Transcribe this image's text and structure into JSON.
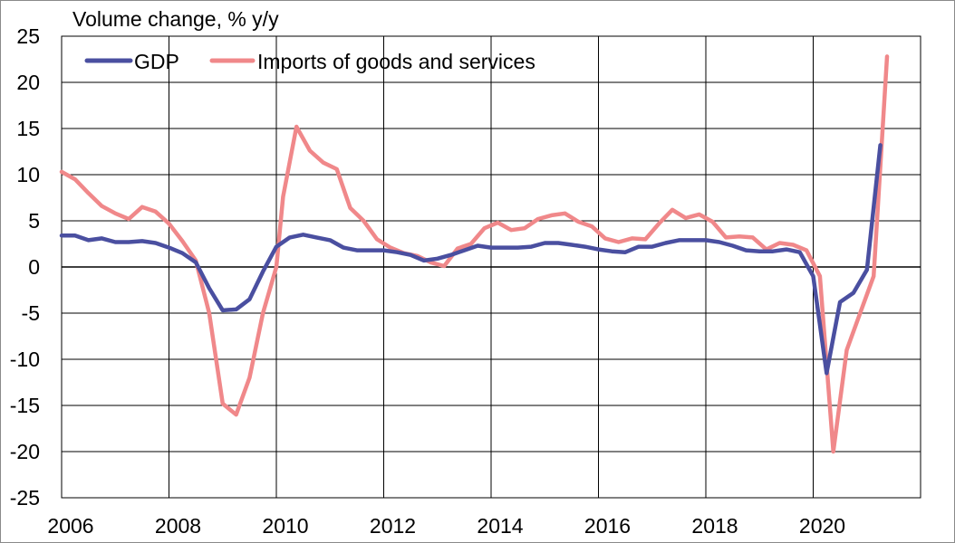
{
  "chart_data": {
    "type": "line",
    "title": "Volume change, % y/y",
    "xlabel": "",
    "ylabel": "",
    "xlim": [
      2006,
      2022
    ],
    "ylim": [
      -25,
      25
    ],
    "x_ticks": [
      2006,
      2008,
      2010,
      2012,
      2014,
      2016,
      2018,
      2020
    ],
    "x_tick_labels": [
      "2006",
      "2008",
      "2010",
      "2012",
      "2014",
      "2016",
      "2018",
      "2020"
    ],
    "y_ticks": [
      25,
      20,
      15,
      10,
      5,
      0,
      -5,
      -10,
      -15,
      -20,
      -25
    ],
    "y_tick_labels": [
      "25",
      "20",
      "15",
      "10",
      "5",
      "0",
      "-5",
      "-10",
      "-15",
      "-20",
      "-25"
    ],
    "grid": true,
    "legend_position": "top-left",
    "series": [
      {
        "name": "GDP",
        "color": "#4a4fa0",
        "x": [
          2006.0,
          2006.25,
          2006.5,
          2006.75,
          2007.0,
          2007.25,
          2007.5,
          2007.75,
          2008.0,
          2008.25,
          2008.5,
          2008.75,
          2009.0,
          2009.25,
          2009.5,
          2009.75,
          2010.0,
          2010.25,
          2010.5,
          2010.75,
          2011.0,
          2011.25,
          2011.5,
          2011.75,
          2012.0,
          2012.25,
          2012.5,
          2012.75,
          2013.0,
          2013.25,
          2013.5,
          2013.75,
          2014.0,
          2014.25,
          2014.5,
          2014.75,
          2015.0,
          2015.25,
          2015.5,
          2015.75,
          2016.0,
          2016.25,
          2016.5,
          2016.75,
          2017.0,
          2017.25,
          2017.5,
          2017.75,
          2018.0,
          2018.25,
          2018.5,
          2018.75,
          2019.0,
          2019.25,
          2019.5,
          2019.75,
          2020.0,
          2020.25,
          2020.5,
          2020.75,
          2021.0,
          2021.25
        ],
        "values": [
          3.4,
          3.4,
          2.9,
          3.1,
          2.7,
          2.7,
          2.8,
          2.6,
          2.1,
          1.5,
          0.5,
          -2.3,
          -4.7,
          -4.6,
          -3.5,
          -0.5,
          2.2,
          3.2,
          3.5,
          3.2,
          2.9,
          2.1,
          1.8,
          1.8,
          1.8,
          1.6,
          1.3,
          0.7,
          0.9,
          1.3,
          1.8,
          2.3,
          2.1,
          2.1,
          2.1,
          2.2,
          2.6,
          2.6,
          2.4,
          2.2,
          1.9,
          1.7,
          1.6,
          2.2,
          2.2,
          2.6,
          2.9,
          2.9,
          2.9,
          2.7,
          2.3,
          1.8,
          1.7,
          1.7,
          1.9,
          1.6,
          -1.0,
          -11.5,
          -3.8,
          -2.8,
          -0.3,
          13.2
        ]
      },
      {
        "name": "Imports of goods and services",
        "color": "#f0888a",
        "x": [
          2006.0,
          2006.25,
          2006.5,
          2006.75,
          2007.0,
          2007.25,
          2007.5,
          2007.75,
          2008.0,
          2008.25,
          2008.5,
          2008.75,
          2009.0,
          2009.25,
          2009.5,
          2009.75,
          2010.0,
          2010.125,
          2010.375,
          2010.625,
          2010.875,
          2011.125,
          2011.375,
          2011.625,
          2011.875,
          2012.125,
          2012.375,
          2012.625,
          2012.875,
          2013.125,
          2013.375,
          2013.625,
          2013.875,
          2014.125,
          2014.375,
          2014.625,
          2014.875,
          2015.125,
          2015.375,
          2015.625,
          2015.875,
          2016.125,
          2016.375,
          2016.625,
          2016.875,
          2017.125,
          2017.375,
          2017.625,
          2017.875,
          2018.125,
          2018.375,
          2018.625,
          2018.875,
          2019.125,
          2019.375,
          2019.625,
          2019.875,
          2020.125,
          2020.375,
          2020.625,
          2020.875,
          2021.125,
          2021.375
        ],
        "values": [
          10.3,
          9.5,
          8.0,
          6.6,
          5.8,
          5.2,
          6.5,
          6.0,
          4.7,
          2.8,
          0.7,
          -5.0,
          -14.8,
          -16.0,
          -12.0,
          -5.0,
          0.0,
          7.6,
          15.2,
          12.6,
          11.3,
          10.6,
          6.4,
          5.0,
          3.0,
          2.1,
          1.5,
          1.2,
          0.5,
          0.1,
          2.0,
          2.5,
          4.2,
          4.8,
          4.0,
          4.2,
          5.2,
          5.6,
          5.8,
          4.9,
          4.4,
          3.1,
          2.7,
          3.1,
          3.0,
          4.7,
          6.2,
          5.3,
          5.7,
          4.9,
          3.2,
          3.3,
          3.2,
          1.9,
          2.6,
          2.4,
          1.8,
          -1.0,
          -20.0,
          -9.0,
          -5.0,
          -1.0,
          22.8
        ]
      }
    ]
  }
}
